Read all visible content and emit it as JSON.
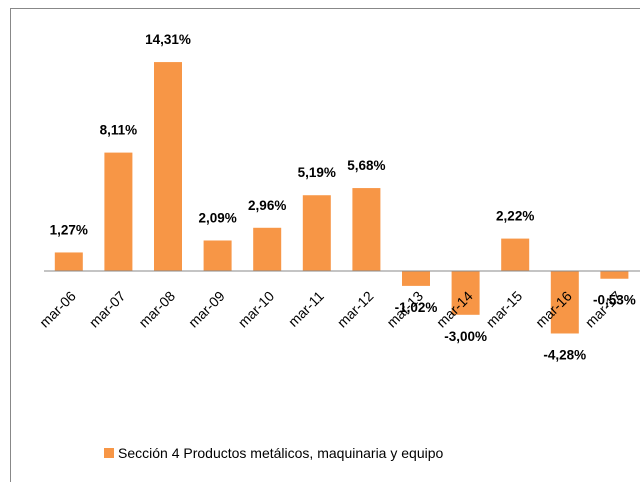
{
  "chart_data": {
    "type": "bar",
    "categories": [
      "mar-06",
      "mar-07",
      "mar-08",
      "mar-09",
      "mar-10",
      "mar-11",
      "mar-12",
      "mar-13",
      "mar-14",
      "mar-15",
      "mar-16",
      "mar-17"
    ],
    "series": [
      {
        "name": "Sección 4 Productos metálicos, maquinaria y equipo",
        "color": "#f79646",
        "values": [
          1.27,
          8.11,
          14.31,
          2.09,
          2.96,
          5.19,
          5.68,
          -1.02,
          -3.0,
          2.22,
          -4.28,
          -0.53
        ],
        "value_labels": [
          "1,27%",
          "8,11%",
          "14,31%",
          "2,09%",
          "2,96%",
          "5,19%",
          "5,68%",
          "-1,02%",
          "-3,00%",
          "2,22%",
          "-4,28%",
          "-0,53%"
        ]
      }
    ],
    "ylim": [
      -6,
      16
    ]
  }
}
